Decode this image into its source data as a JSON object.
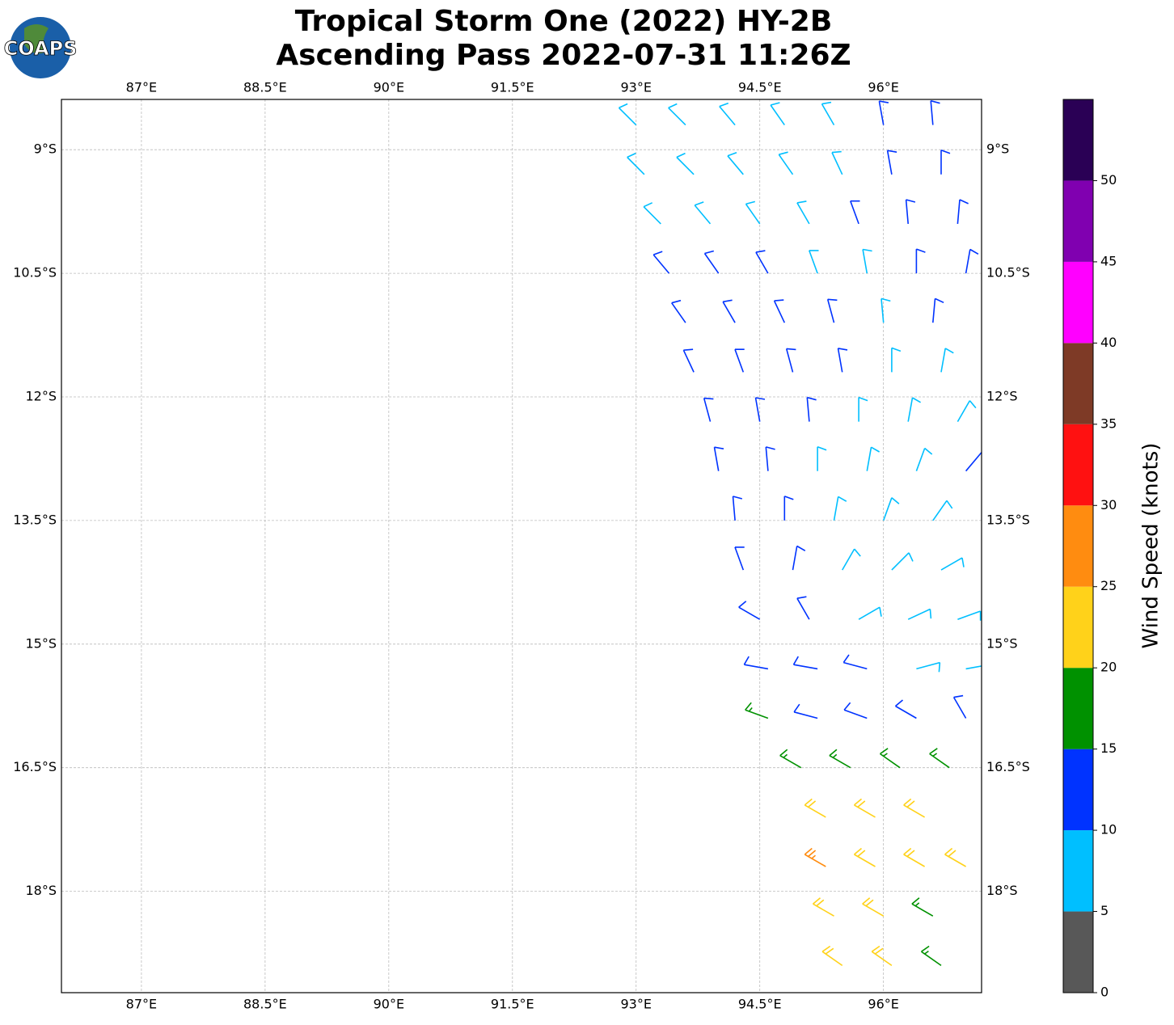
{
  "chart_data": {
    "type": "barbs",
    "title": "Tropical Storm One (2022) HY-2B",
    "subtitle": "Ascending Pass 2022-07-31 11:26Z",
    "logo_text": "COAPS",
    "xlim": [
      86.03,
      97.19
    ],
    "ylim": [
      -19.23,
      -8.39
    ],
    "grid": true,
    "xticks": [
      {
        "value": 87,
        "label": "87°E"
      },
      {
        "value": 88.5,
        "label": "88.5°E"
      },
      {
        "value": 90,
        "label": "90°E"
      },
      {
        "value": 91.5,
        "label": "91.5°E"
      },
      {
        "value": 93,
        "label": "93°E"
      },
      {
        "value": 94.5,
        "label": "94.5°E"
      },
      {
        "value": 96,
        "label": "96°E"
      }
    ],
    "yticks": [
      {
        "value": -9,
        "label": "9°S"
      },
      {
        "value": -10.5,
        "label": "10.5°S"
      },
      {
        "value": -12,
        "label": "12°S"
      },
      {
        "value": -13.5,
        "label": "13.5°S"
      },
      {
        "value": -15,
        "label": "15°S"
      },
      {
        "value": -16.5,
        "label": "16.5°S"
      },
      {
        "value": -18,
        "label": "18°S"
      }
    ],
    "lon": [
      93.0,
      93.6,
      94.2,
      94.8,
      95.4,
      96.0,
      96.6,
      93.1,
      93.7,
      94.3,
      94.9,
      95.5,
      96.1,
      96.7,
      93.3,
      93.9,
      94.5,
      95.1,
      95.7,
      96.3,
      96.9,
      93.4,
      94.0,
      94.6,
      95.2,
      95.8,
      96.4,
      97.0,
      93.6,
      94.2,
      94.8,
      95.4,
      96.0,
      96.6,
      93.7,
      94.3,
      94.9,
      95.5,
      96.1,
      96.7,
      93.9,
      94.5,
      95.1,
      95.7,
      96.3,
      96.9,
      94.0,
      94.6,
      95.2,
      95.8,
      96.4,
      97.0,
      94.2,
      94.8,
      95.4,
      96.0,
      96.6,
      94.3,
      94.9,
      95.5,
      96.1,
      96.7,
      94.5,
      95.1,
      95.7,
      96.3,
      96.9,
      94.6,
      95.2,
      95.8,
      96.4,
      97.0,
      94.6,
      95.2,
      95.8,
      96.4,
      97.0,
      95.0,
      95.6,
      96.2,
      96.8,
      95.3,
      95.9,
      96.5,
      95.3,
      95.9,
      96.5,
      97.0,
      95.4,
      96.0,
      96.6,
      95.5,
      96.1,
      96.7
    ],
    "lat": [
      -8.7,
      -8.7,
      -8.7,
      -8.7,
      -8.7,
      -8.7,
      -8.7,
      -9.3,
      -9.3,
      -9.3,
      -9.3,
      -9.3,
      -9.3,
      -9.3,
      -9.9,
      -9.9,
      -9.9,
      -9.9,
      -9.9,
      -9.9,
      -9.9,
      -10.5,
      -10.5,
      -10.5,
      -10.5,
      -10.5,
      -10.5,
      -10.5,
      -11.1,
      -11.1,
      -11.1,
      -11.1,
      -11.1,
      -11.1,
      -11.7,
      -11.7,
      -11.7,
      -11.7,
      -11.7,
      -11.7,
      -12.3,
      -12.3,
      -12.3,
      -12.3,
      -12.3,
      -12.3,
      -12.9,
      -12.9,
      -12.9,
      -12.9,
      -12.9,
      -12.9,
      -13.5,
      -13.5,
      -13.5,
      -13.5,
      -13.5,
      -14.1,
      -14.1,
      -14.1,
      -14.1,
      -14.1,
      -14.7,
      -14.7,
      -14.7,
      -14.7,
      -14.7,
      -15.3,
      -15.3,
      -15.3,
      -15.3,
      -15.3,
      -15.9,
      -15.9,
      -15.9,
      -15.9,
      -15.9,
      -16.5,
      -16.5,
      -16.5,
      -16.5,
      -17.1,
      -17.1,
      -17.1,
      -17.7,
      -17.7,
      -17.7,
      -17.7,
      -18.3,
      -18.3,
      -18.3,
      -18.9,
      -18.9,
      -18.9
    ],
    "speed": [
      8,
      8,
      8,
      8,
      8,
      12,
      12,
      8,
      8,
      8,
      8,
      8,
      12,
      12,
      8,
      8,
      8,
      8,
      12,
      12,
      12,
      12,
      12,
      12,
      8,
      8,
      12,
      12,
      12,
      12,
      12,
      12,
      8,
      12,
      12,
      12,
      12,
      12,
      8,
      8,
      12,
      12,
      12,
      8,
      8,
      8,
      12,
      12,
      8,
      8,
      8,
      12,
      12,
      12,
      8,
      8,
      8,
      12,
      12,
      8,
      8,
      8,
      12,
      12,
      8,
      8,
      8,
      12,
      12,
      12,
      8,
      8,
      17,
      12,
      12,
      12,
      12,
      17,
      17,
      17,
      17,
      22,
      22,
      22,
      27,
      22,
      22,
      22,
      22,
      22,
      17,
      22,
      22,
      17
    ],
    "dir": [
      315,
      315,
      320,
      325,
      330,
      350,
      355,
      315,
      315,
      320,
      325,
      335,
      350,
      0,
      315,
      320,
      325,
      330,
      340,
      355,
      5,
      320,
      325,
      330,
      340,
      350,
      0,
      10,
      325,
      330,
      335,
      345,
      355,
      5,
      335,
      340,
      345,
      350,
      0,
      10,
      345,
      350,
      355,
      0,
      10,
      30,
      350,
      355,
      0,
      10,
      20,
      40,
      355,
      0,
      10,
      20,
      35,
      340,
      10,
      30,
      45,
      60,
      300,
      330,
      60,
      65,
      70,
      280,
      280,
      285,
      75,
      80,
      290,
      285,
      290,
      300,
      330,
      300,
      300,
      305,
      305,
      300,
      300,
      300,
      300,
      300,
      300,
      300,
      300,
      300,
      300,
      305,
      305,
      305
    ],
    "colorbar": {
      "label": "Wind Speed (knots)",
      "bounds": [
        0,
        5,
        10,
        15,
        20,
        25,
        30,
        35,
        40,
        45,
        50,
        55
      ],
      "colors": [
        "#585858",
        "#00bfff",
        "#0033ff",
        "#009100",
        "#ffd21a",
        "#ff8c10",
        "#ff1111",
        "#7e3a26",
        "#ff00ff",
        "#8000b0",
        "#2a0055"
      ],
      "ticks": [
        0,
        5,
        10,
        15,
        20,
        25,
        30,
        35,
        40,
        45,
        50
      ]
    }
  }
}
